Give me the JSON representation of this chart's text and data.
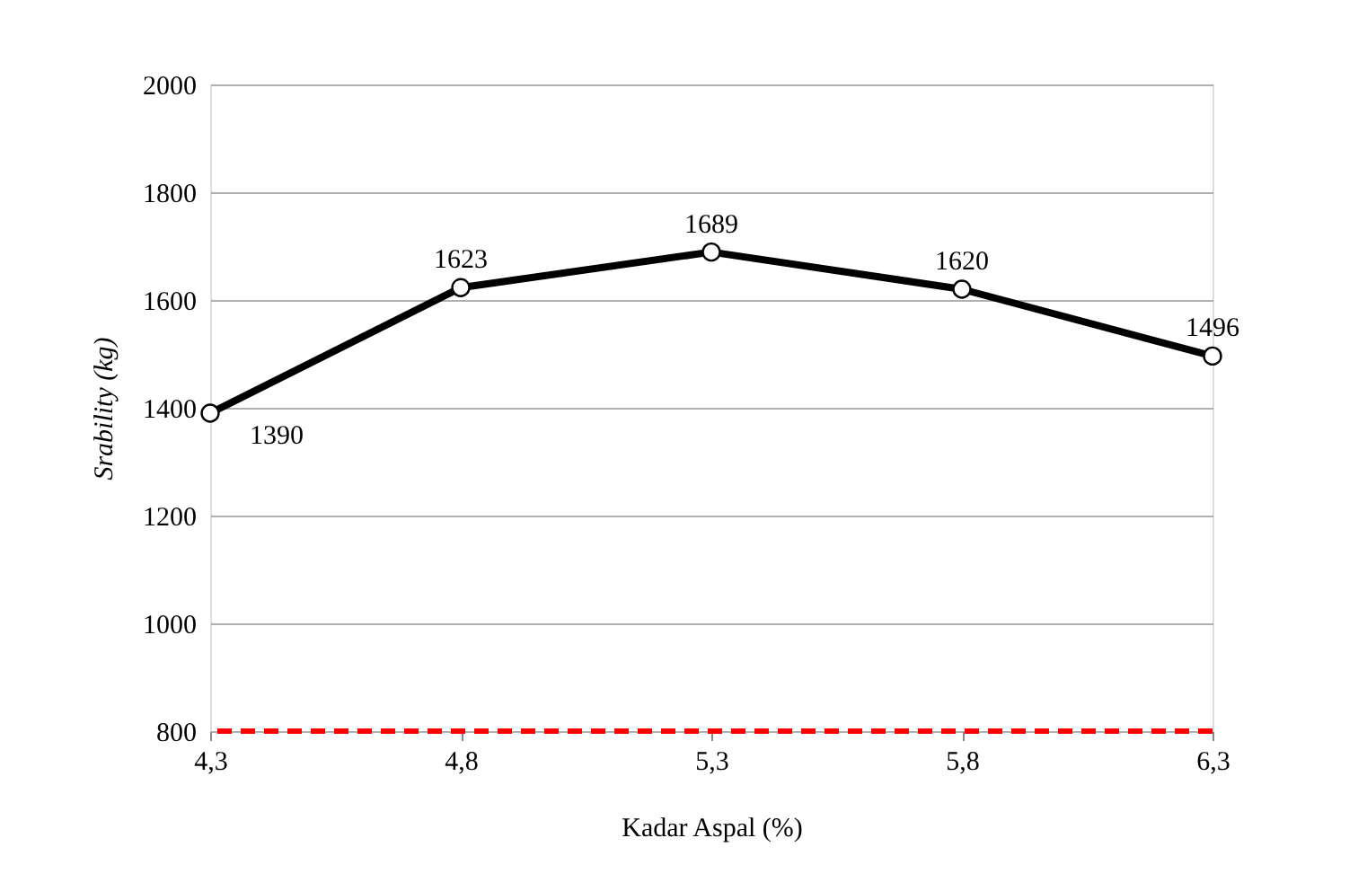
{
  "chart_data": {
    "type": "line",
    "xlabel": "Kadar Aspal (%)",
    "ylabel": "Srability (kg)",
    "categories": [
      "4,3",
      "4,8",
      "5,3",
      "5,8",
      "6,3"
    ],
    "series": [
      {
        "color": "#000000",
        "values": [
          1390,
          1623,
          1689,
          1620,
          1496
        ]
      }
    ],
    "ylim": [
      800,
      2000
    ],
    "yticks": [
      800,
      1000,
      1200,
      1400,
      1600,
      1800,
      2000
    ],
    "grid": "y",
    "marker": "circle",
    "line_style": "solid",
    "data_labels": true,
    "ref_lines": [
      {
        "axis": "y",
        "value": 800,
        "color": "#ff0000",
        "line_style": "dashed"
      }
    ]
  }
}
